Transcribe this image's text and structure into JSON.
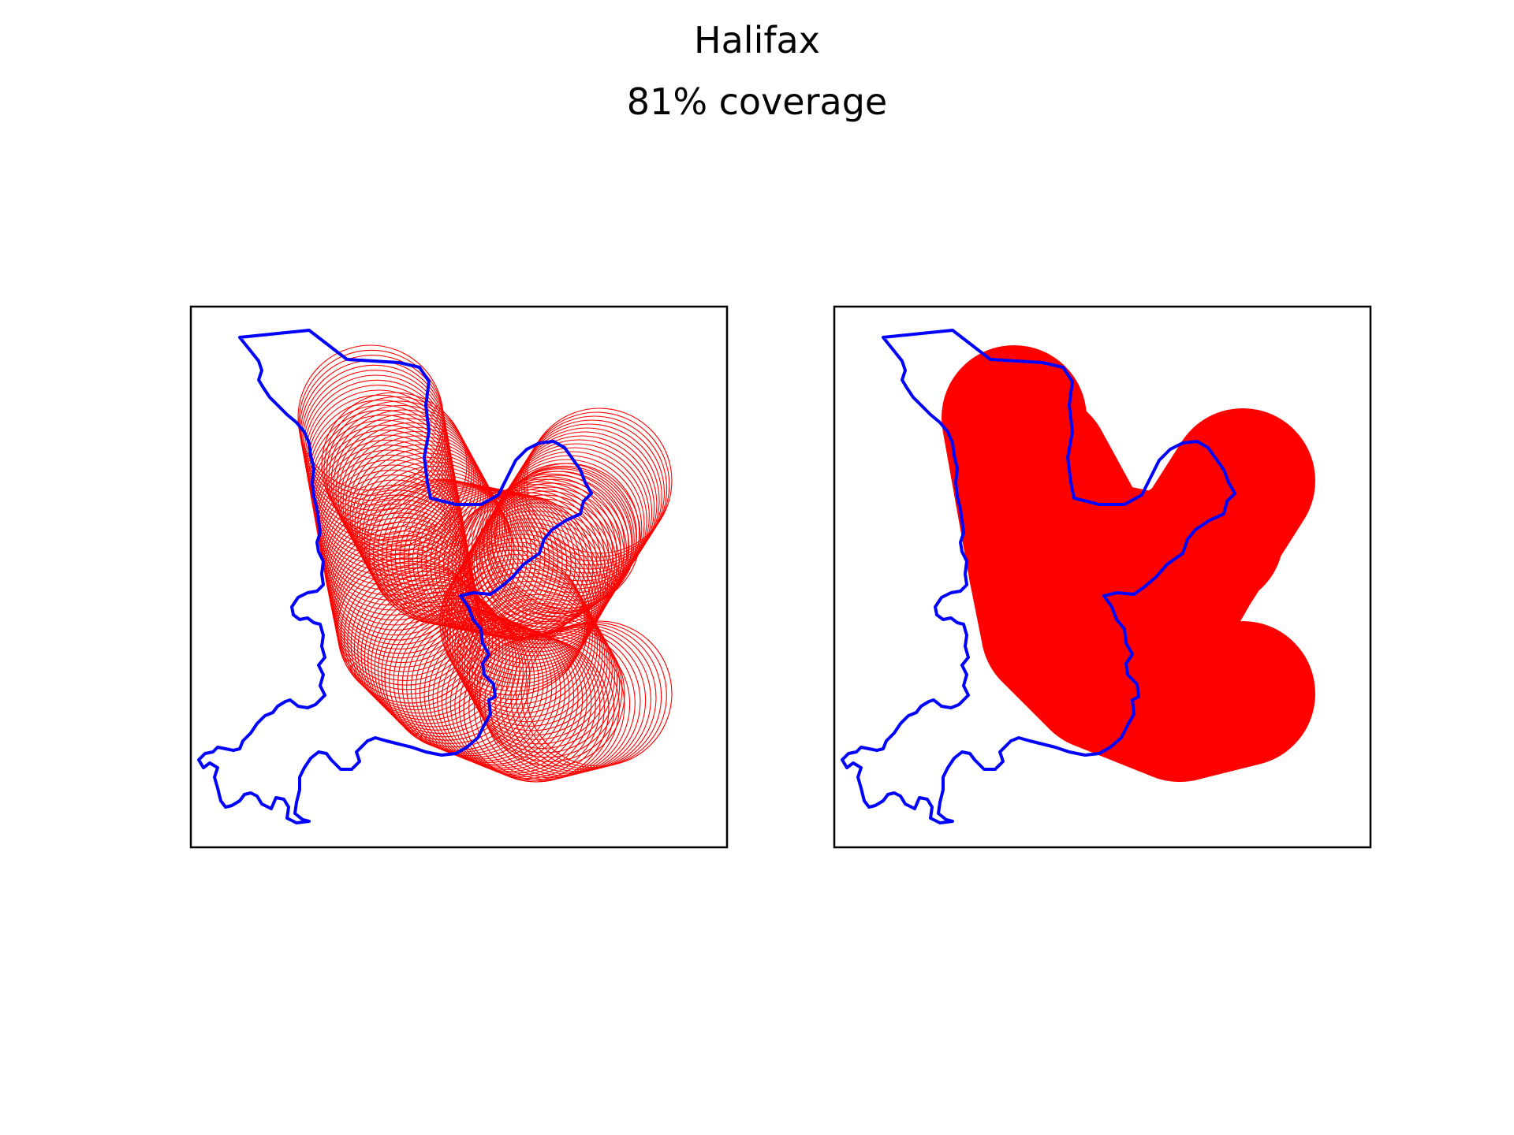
{
  "figure": {
    "title": "Halifax",
    "subtitle": "81% coverage"
  },
  "colors": {
    "boundary": "#0000ff",
    "coverage": "#ff0000",
    "frame": "#000000",
    "background": "#ffffff"
  },
  "panels": [
    {
      "name": "left-panel",
      "style": "outline-circles"
    },
    {
      "name": "right-panel",
      "style": "filled-union"
    }
  ]
}
